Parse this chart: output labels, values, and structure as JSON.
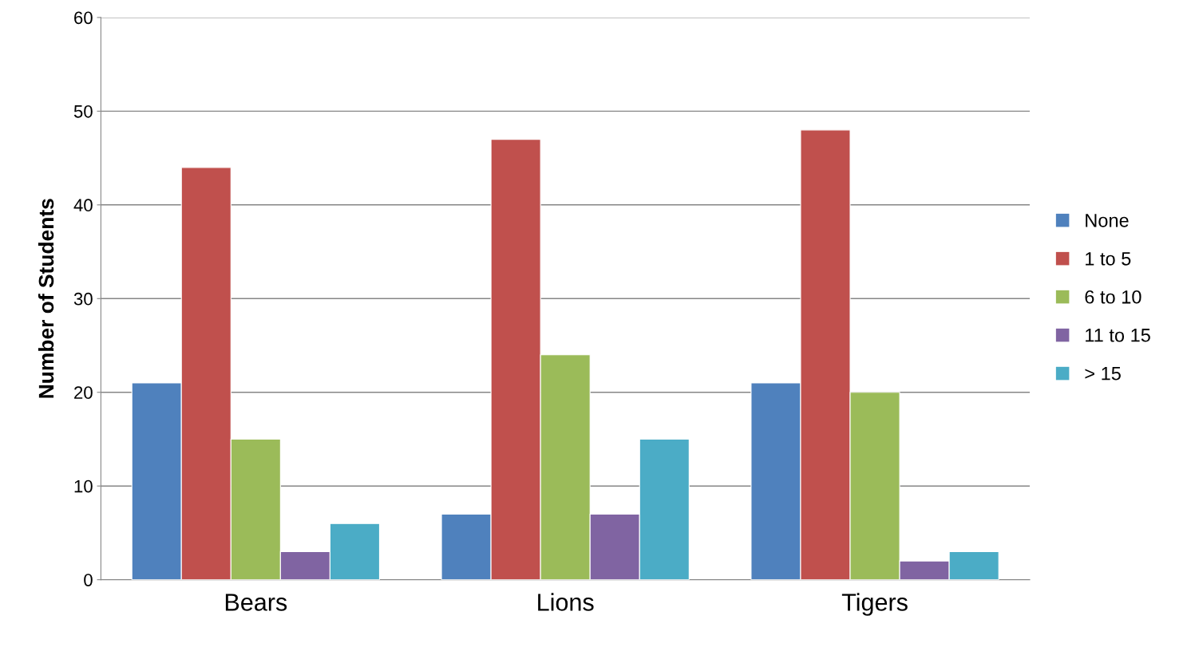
{
  "chart_data": {
    "type": "bar",
    "ylabel": "Number of Students",
    "categories": [
      "Bears",
      "Lions",
      "Tigers"
    ],
    "series": [
      {
        "name": "None",
        "color": "#4f81bd",
        "values": [
          21,
          7,
          21
        ]
      },
      {
        "name": "1 to 5",
        "color": "#c0504d",
        "values": [
          44,
          47,
          48
        ]
      },
      {
        "name": "6 to 10",
        "color": "#9bbb59",
        "values": [
          15,
          24,
          20
        ]
      },
      {
        "name": "11 to 15",
        "color": "#8064a2",
        "values": [
          3,
          7,
          2
        ]
      },
      {
        "name": "> 15",
        "color": "#4bacc6",
        "values": [
          6,
          15,
          3
        ]
      }
    ],
    "ylim": [
      0,
      60
    ],
    "yticks": [
      0,
      10,
      20,
      30,
      40,
      50,
      60
    ],
    "grid": "y",
    "legend": "right"
  }
}
